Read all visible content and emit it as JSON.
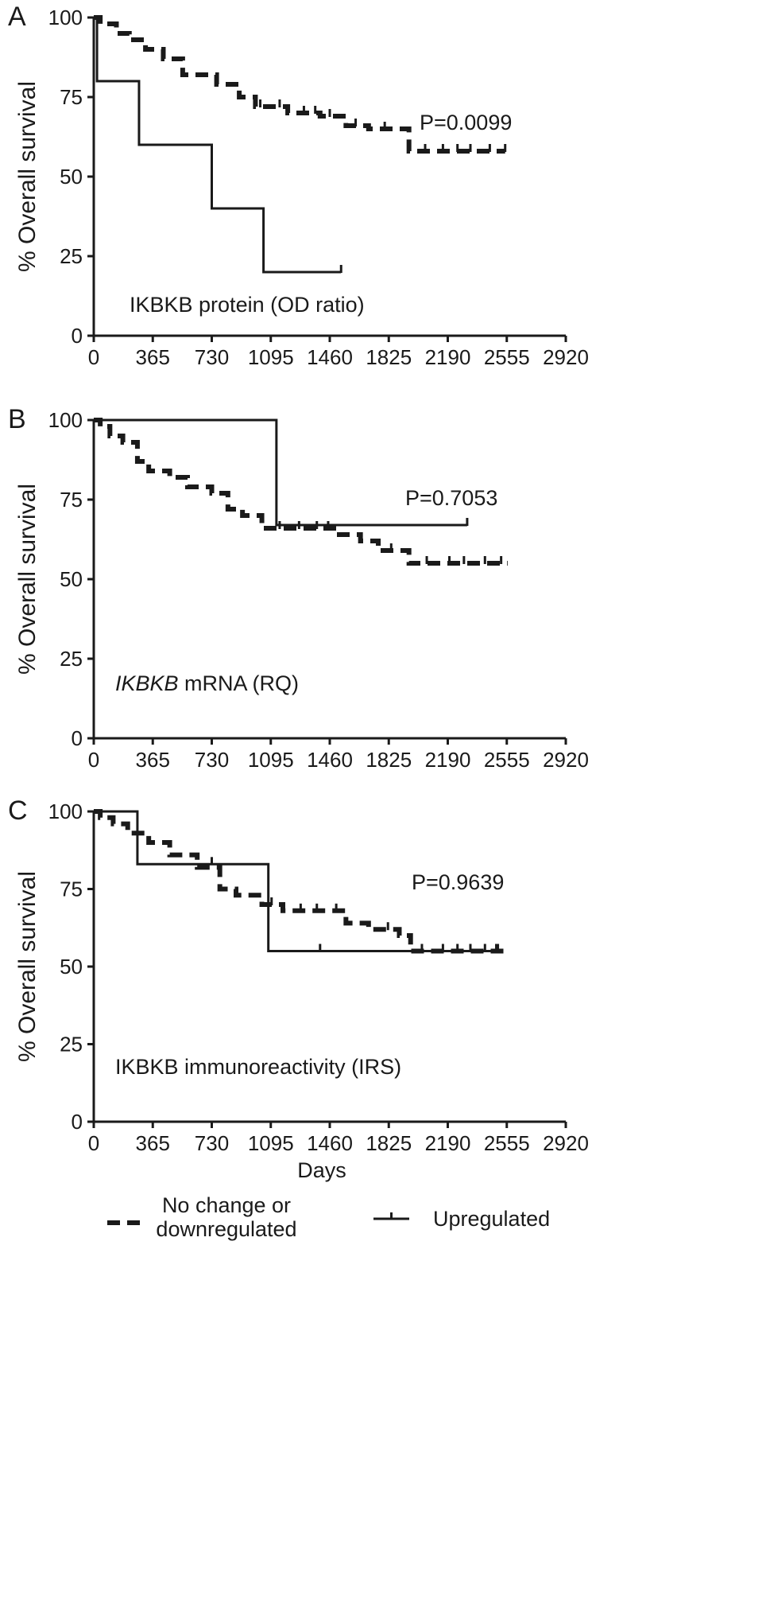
{
  "figure": {
    "legend": {
      "entries": [
        {
          "style": "dashed",
          "label_lines": [
            "No change or",
            "downregulated"
          ]
        },
        {
          "style": "solid",
          "label_lines": [
            "Upregulated"
          ]
        }
      ]
    }
  },
  "chart_data": [
    {
      "type": "line",
      "panel": "A",
      "xlabel": "",
      "ylabel": "% Overall survival",
      "xlim": [
        0,
        2920
      ],
      "ylim": [
        0,
        100
      ],
      "xticks": [
        "0",
        "365",
        "730",
        "1095",
        "1460",
        "1825",
        "2190",
        "2555",
        "2920"
      ],
      "yticks": [
        "0",
        "25",
        "50",
        "75",
        "100"
      ],
      "annotations": {
        "pvalue": "P=0.0099",
        "label": "IKBKB protein (OD ratio)",
        "label_italic_part": ""
      },
      "series": [
        {
          "style": "dashed",
          "step": true,
          "x": [
            0,
            40,
            140,
            220,
            320,
            430,
            550,
            760,
            900,
            1000,
            1200,
            1400,
            1560,
            1700,
            1950,
            2545
          ],
          "y": [
            100,
            98,
            95,
            93,
            90,
            87,
            82,
            79,
            75,
            72,
            70,
            69,
            66,
            65,
            58,
            58
          ],
          "censored_x": [
            1030,
            1150,
            1300,
            1370,
            1460,
            1620,
            1800,
            2050,
            2160,
            2250,
            2330,
            2450,
            2545
          ]
        },
        {
          "style": "solid",
          "step": true,
          "x": [
            0,
            20,
            280,
            730,
            1050,
            1530
          ],
          "y": [
            100,
            80,
            60,
            40,
            20,
            20
          ],
          "censored_x": [
            1530
          ]
        }
      ]
    },
    {
      "type": "line",
      "panel": "B",
      "xlabel": "",
      "ylabel": "% Overall survival",
      "xlim": [
        0,
        2920
      ],
      "ylim": [
        0,
        100
      ],
      "xticks": [
        "0",
        "365",
        "730",
        "1095",
        "1460",
        "1825",
        "2190",
        "2555",
        "2920"
      ],
      "yticks": [
        "0",
        "25",
        "50",
        "75",
        "100"
      ],
      "annotations": {
        "pvalue": "P=0.7053",
        "label": " mRNA (RQ)",
        "label_italic_part": "IKBKB"
      },
      "series": [
        {
          "style": "dashed",
          "step": true,
          "x": [
            0,
            40,
            100,
            180,
            270,
            340,
            470,
            580,
            730,
            830,
            920,
            1040,
            1500,
            1650,
            1760,
            1950,
            2560
          ],
          "y": [
            100,
            98,
            95,
            93,
            87,
            84,
            82,
            79,
            77,
            72,
            70,
            66,
            64,
            62,
            59,
            55,
            55
          ],
          "censored_x": [
            1150,
            1270,
            1380,
            1450,
            1840,
            2060,
            2200,
            2290,
            2420,
            2520
          ]
        },
        {
          "style": "solid",
          "step": true,
          "x": [
            0,
            1130,
            2310
          ],
          "y": [
            100,
            67,
            67
          ],
          "censored_x": [
            2310
          ]
        }
      ]
    },
    {
      "type": "line",
      "panel": "C",
      "xlabel": "Days",
      "ylabel": "% Overall survival",
      "xlim": [
        0,
        2920
      ],
      "ylim": [
        0,
        100
      ],
      "xticks": [
        "0",
        "365",
        "730",
        "1095",
        "1460",
        "1825",
        "2190",
        "2555",
        "2920"
      ],
      "yticks": [
        "0",
        "25",
        "50",
        "75",
        "100"
      ],
      "annotations": {
        "pvalue": "P=0.9639",
        "label": "IKBKB immunoreactivity (IRS)",
        "label_italic_part": ""
      },
      "series": [
        {
          "style": "dashed",
          "step": true,
          "x": [
            0,
            40,
            120,
            210,
            340,
            470,
            640,
            780,
            880,
            1040,
            1170,
            1560,
            1700,
            1890,
            1960,
            2560
          ],
          "y": [
            100,
            98,
            96,
            93,
            90,
            86,
            82,
            75,
            73,
            70,
            68,
            64,
            62,
            60,
            55,
            55
          ],
          "censored_x": [
            1100,
            1280,
            1380,
            1500,
            1820,
            2030,
            2160,
            2250,
            2330,
            2420,
            2500
          ]
        },
        {
          "style": "solid",
          "step": true,
          "x": [
            0,
            270,
            1080,
            2490
          ],
          "y": [
            100,
            83,
            55,
            55
          ],
          "censored_x": [
            730,
            1400,
            2490
          ]
        }
      ]
    }
  ]
}
